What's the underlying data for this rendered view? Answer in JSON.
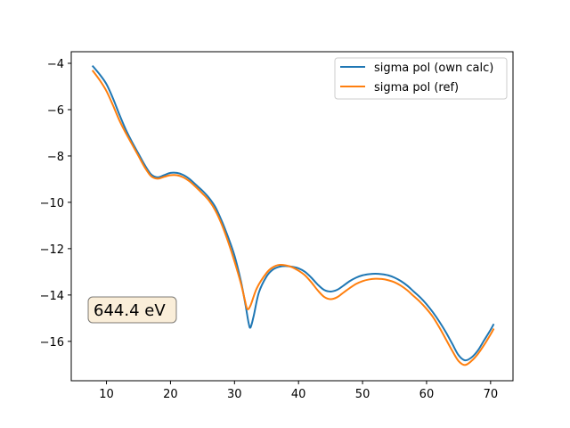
{
  "chart_data": {
    "type": "line",
    "title": "",
    "xlabel": "",
    "ylabel": "",
    "xlim": [
      4.5,
      73.5
    ],
    "ylim": [
      -17.7,
      -3.5
    ],
    "xticks": [
      10,
      20,
      30,
      40,
      50,
      60,
      70
    ],
    "yticks": [
      -16,
      -14,
      -12,
      -10,
      -8,
      -6,
      -4
    ],
    "xtick_labels": [
      "10",
      "20",
      "30",
      "40",
      "50",
      "60",
      "70"
    ],
    "ytick_labels": [
      "−16",
      "−14",
      "−12",
      "−10",
      "−8",
      "−6",
      "−4"
    ],
    "grid": false,
    "legend_position": "top-right",
    "annotation": "644.4 eV",
    "series": [
      {
        "name": "sigma pol (own calc)",
        "color": "#1f77b4",
        "points": [
          [
            7.8,
            -4.1
          ],
          [
            9,
            -4.5
          ],
          [
            10,
            -4.9
          ],
          [
            11,
            -5.5
          ],
          [
            12,
            -6.2
          ],
          [
            13,
            -6.85
          ],
          [
            14,
            -7.4
          ],
          [
            15,
            -7.9
          ],
          [
            16,
            -8.4
          ],
          [
            17,
            -8.8
          ],
          [
            18,
            -8.92
          ],
          [
            19,
            -8.83
          ],
          [
            20,
            -8.73
          ],
          [
            21,
            -8.73
          ],
          [
            22,
            -8.82
          ],
          [
            23,
            -9.0
          ],
          [
            24,
            -9.25
          ],
          [
            25,
            -9.5
          ],
          [
            26,
            -9.8
          ],
          [
            27,
            -10.2
          ],
          [
            28,
            -10.8
          ],
          [
            29,
            -11.5
          ],
          [
            30,
            -12.3
          ],
          [
            31,
            -13.4
          ],
          [
            31.7,
            -14.4
          ],
          [
            32.2,
            -15.2
          ],
          [
            32.5,
            -15.4
          ],
          [
            33,
            -14.9
          ],
          [
            33.8,
            -13.9
          ],
          [
            35,
            -13.2
          ],
          [
            36,
            -12.9
          ],
          [
            37,
            -12.78
          ],
          [
            38,
            -12.75
          ],
          [
            39,
            -12.78
          ],
          [
            40,
            -12.85
          ],
          [
            41,
            -13.0
          ],
          [
            42,
            -13.25
          ],
          [
            43,
            -13.55
          ],
          [
            44,
            -13.78
          ],
          [
            45,
            -13.85
          ],
          [
            46,
            -13.78
          ],
          [
            47,
            -13.6
          ],
          [
            48,
            -13.4
          ],
          [
            49,
            -13.25
          ],
          [
            50,
            -13.15
          ],
          [
            51,
            -13.1
          ],
          [
            52,
            -13.08
          ],
          [
            53,
            -13.1
          ],
          [
            54,
            -13.15
          ],
          [
            55,
            -13.25
          ],
          [
            56,
            -13.4
          ],
          [
            57,
            -13.6
          ],
          [
            58,
            -13.85
          ],
          [
            59,
            -14.1
          ],
          [
            60,
            -14.4
          ],
          [
            61,
            -14.75
          ],
          [
            62,
            -15.15
          ],
          [
            63,
            -15.6
          ],
          [
            64,
            -16.1
          ],
          [
            65,
            -16.6
          ],
          [
            66,
            -16.82
          ],
          [
            67,
            -16.7
          ],
          [
            68,
            -16.4
          ],
          [
            69,
            -15.95
          ],
          [
            70,
            -15.5
          ],
          [
            70.5,
            -15.25
          ]
        ]
      },
      {
        "name": "sigma pol (ref)",
        "color": "#ff7f0e",
        "points": [
          [
            7.8,
            -4.3
          ],
          [
            9,
            -4.75
          ],
          [
            10,
            -5.2
          ],
          [
            11,
            -5.8
          ],
          [
            12,
            -6.45
          ],
          [
            13,
            -7.0
          ],
          [
            14,
            -7.5
          ],
          [
            15,
            -8.0
          ],
          [
            16,
            -8.5
          ],
          [
            17,
            -8.88
          ],
          [
            18,
            -8.98
          ],
          [
            19,
            -8.9
          ],
          [
            20,
            -8.83
          ],
          [
            21,
            -8.83
          ],
          [
            22,
            -8.92
          ],
          [
            23,
            -9.1
          ],
          [
            24,
            -9.35
          ],
          [
            25,
            -9.62
          ],
          [
            26,
            -9.92
          ],
          [
            27,
            -10.35
          ],
          [
            28,
            -10.95
          ],
          [
            29,
            -11.7
          ],
          [
            30,
            -12.55
          ],
          [
            31,
            -13.5
          ],
          [
            31.6,
            -14.2
          ],
          [
            32,
            -14.6
          ],
          [
            32.5,
            -14.45
          ],
          [
            33.5,
            -13.7
          ],
          [
            35,
            -13.05
          ],
          [
            36,
            -12.8
          ],
          [
            37,
            -12.7
          ],
          [
            38,
            -12.72
          ],
          [
            39,
            -12.8
          ],
          [
            40,
            -12.95
          ],
          [
            41,
            -13.15
          ],
          [
            42,
            -13.45
          ],
          [
            43,
            -13.8
          ],
          [
            44,
            -14.08
          ],
          [
            45,
            -14.18
          ],
          [
            46,
            -14.1
          ],
          [
            47,
            -13.9
          ],
          [
            48,
            -13.7
          ],
          [
            49,
            -13.52
          ],
          [
            50,
            -13.4
          ],
          [
            51,
            -13.33
          ],
          [
            52,
            -13.3
          ],
          [
            53,
            -13.31
          ],
          [
            54,
            -13.36
          ],
          [
            55,
            -13.45
          ],
          [
            56,
            -13.6
          ],
          [
            57,
            -13.8
          ],
          [
            58,
            -14.05
          ],
          [
            59,
            -14.3
          ],
          [
            60,
            -14.6
          ],
          [
            61,
            -14.95
          ],
          [
            62,
            -15.4
          ],
          [
            63,
            -15.9
          ],
          [
            64,
            -16.4
          ],
          [
            65,
            -16.85
          ],
          [
            66,
            -17.02
          ],
          [
            67,
            -16.85
          ],
          [
            68,
            -16.55
          ],
          [
            69,
            -16.15
          ],
          [
            70,
            -15.7
          ],
          [
            70.5,
            -15.45
          ]
        ]
      }
    ]
  }
}
